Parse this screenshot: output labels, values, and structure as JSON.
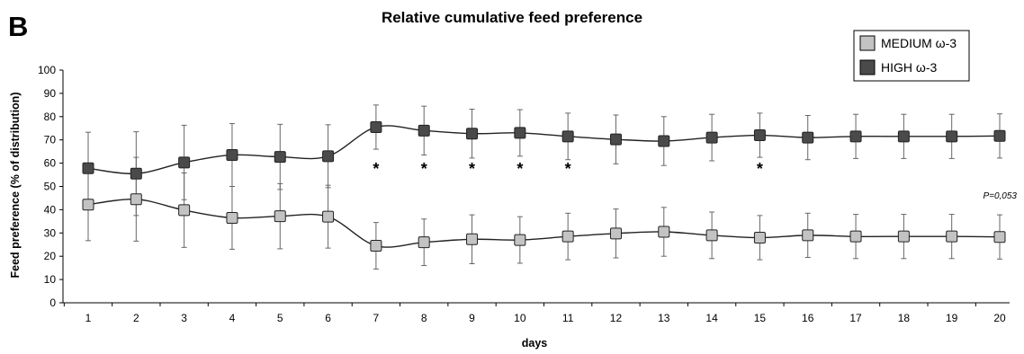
{
  "panel_letter": "B",
  "chart_data": {
    "type": "line",
    "title": "Relative cumulative feed preference",
    "xlabel": "days",
    "ylabel": "Feed preference (% of distribution)",
    "categories": [
      "1",
      "2",
      "3",
      "4",
      "5",
      "6",
      "7",
      "8",
      "9",
      "10",
      "11",
      "12",
      "13",
      "14",
      "15",
      "16",
      "17",
      "18",
      "19",
      "20"
    ],
    "ylim": [
      0,
      100
    ],
    "yticks": [
      0,
      10,
      20,
      30,
      40,
      50,
      60,
      70,
      80,
      90,
      100
    ],
    "series": [
      {
        "name": "MEDIUM ω-3",
        "color": "#c3c3c3",
        "values": [
          42.2,
          44.5,
          39.8,
          36.5,
          37.2,
          37.0,
          24.5,
          26.0,
          27.3,
          27.0,
          28.5,
          29.8,
          30.5,
          29.0,
          28.0,
          29.0,
          28.5,
          28.5,
          28.5,
          28.3
        ],
        "error": [
          15.5,
          18.0,
          16.0,
          13.5,
          14.0,
          13.5,
          10.0,
          10.0,
          10.5,
          10.0,
          10.0,
          10.5,
          10.5,
          10.0,
          9.5,
          9.5,
          9.5,
          9.5,
          9.5,
          9.5
        ]
      },
      {
        "name": "HIGH ω-3",
        "color": "#4a4a4a",
        "values": [
          57.8,
          55.5,
          60.3,
          63.5,
          62.7,
          63.0,
          75.5,
          74.0,
          72.7,
          73.0,
          71.5,
          70.2,
          69.5,
          71.0,
          72.0,
          71.0,
          71.5,
          71.5,
          71.5,
          71.7
        ],
        "error": [
          15.5,
          18.0,
          16.0,
          13.5,
          14.0,
          13.5,
          9.5,
          10.5,
          10.5,
          10.0,
          10.0,
          10.5,
          10.5,
          10.0,
          9.5,
          9.5,
          9.5,
          9.5,
          9.5,
          9.5
        ]
      }
    ],
    "significance": {
      "symbol": "*",
      "days": [
        "7",
        "8",
        "9",
        "10",
        "11",
        "15"
      ]
    },
    "p_value_note": "P=0,053",
    "legend_position": "top-right",
    "grid": false
  }
}
